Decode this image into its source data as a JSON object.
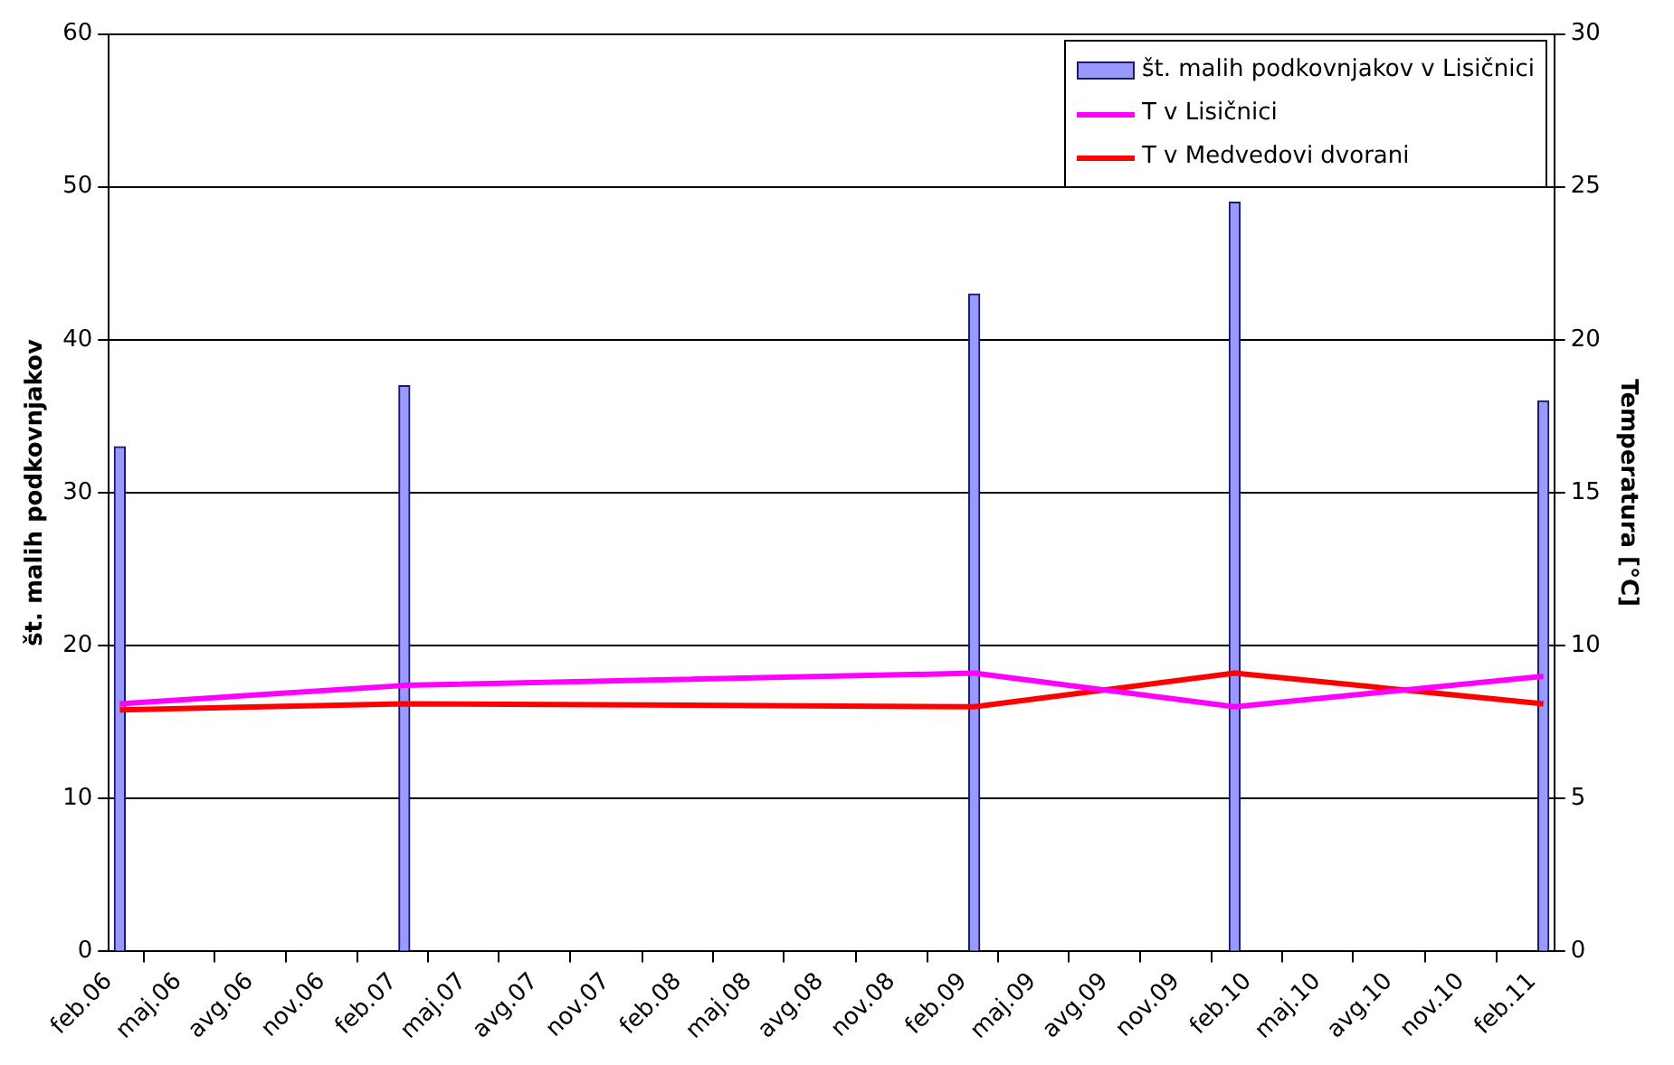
{
  "chart_data": {
    "type": "bar",
    "ylabel": "št. malih podkovnjakov",
    "y2label": "Temperatura [°C]",
    "x": [
      "2006-02-15",
      "2007-02-15",
      "2009-02-15",
      "2010-01-15",
      "2011-02-15"
    ],
    "series": [
      {
        "name": "št. malih podkovnjakov v Lisičnici",
        "color": "#9999ff",
        "values": [
          33,
          37,
          43,
          49,
          36
        ]
      },
      {
        "name": "T v Lisičnici",
        "type": "line",
        "axis": "y2",
        "color": "#ff00ff",
        "values": [
          8.1,
          8.7,
          9.1,
          8.0,
          9.0
        ]
      },
      {
        "name": "T v Medvedovi dvorani",
        "type": "line",
        "axis": "y2",
        "color": "#ff0000",
        "values": [
          7.9,
          8.1,
          8.0,
          9.1,
          8.1
        ]
      }
    ],
    "xlim": [
      "2006-02-01",
      "2011-03-01"
    ],
    "xticks": [
      {
        "value": "2006-02-01",
        "label": "feb.06"
      },
      {
        "value": "2006-05-01",
        "label": "maj.06"
      },
      {
        "value": "2006-08-01",
        "label": "avg.06"
      },
      {
        "value": "2006-11-01",
        "label": "nov.06"
      },
      {
        "value": "2007-02-01",
        "label": "feb.07"
      },
      {
        "value": "2007-05-01",
        "label": "maj.07"
      },
      {
        "value": "2007-08-01",
        "label": "avg.07"
      },
      {
        "value": "2007-11-01",
        "label": "nov.07"
      },
      {
        "value": "2008-02-01",
        "label": "feb.08"
      },
      {
        "value": "2008-05-01",
        "label": "maj.08"
      },
      {
        "value": "2008-08-01",
        "label": "avg.08"
      },
      {
        "value": "2008-11-01",
        "label": "nov.08"
      },
      {
        "value": "2009-02-01",
        "label": "feb.09"
      },
      {
        "value": "2009-05-01",
        "label": "maj.09"
      },
      {
        "value": "2009-08-01",
        "label": "avg.09"
      },
      {
        "value": "2009-11-01",
        "label": "nov.09"
      },
      {
        "value": "2010-02-01",
        "label": "feb.10"
      },
      {
        "value": "2010-05-01",
        "label": "maj.10"
      },
      {
        "value": "2010-08-01",
        "label": "avg.10"
      },
      {
        "value": "2010-11-01",
        "label": "nov.10"
      },
      {
        "value": "2011-02-01",
        "label": "feb.11"
      }
    ],
    "ylim": [
      0,
      60
    ],
    "yticks": [
      0,
      10,
      20,
      30,
      40,
      50,
      60
    ],
    "y2lim": [
      0,
      30
    ],
    "y2ticks": [
      0,
      5,
      10,
      15,
      20,
      25,
      30
    ],
    "grid": "y",
    "legend": "top right",
    "marker": "none",
    "line_style": "solid"
  }
}
